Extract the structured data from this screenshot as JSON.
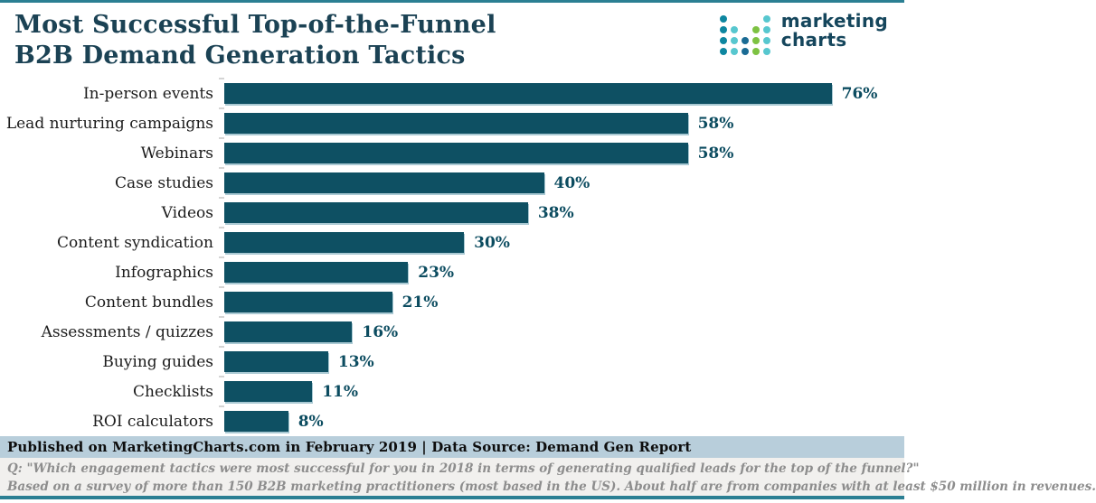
{
  "title": {
    "line1": "Most Successful Top-of-the-Funnel",
    "line2": "B2B Demand Generation Tactics"
  },
  "logo": {
    "name": "marketing-charts-logo",
    "text_line1": "marketing",
    "text_line2": "charts",
    "dot_grid": [
      [
        "#0d86a0",
        null,
        null,
        null,
        "#57c7cf"
      ],
      [
        "#0d86a0",
        "#57c7cf",
        null,
        "#7dc242",
        "#57c7cf"
      ],
      [
        "#0d86a0",
        "#57c7cf",
        "#1a6b94",
        "#7dc242",
        "#57c7cf"
      ],
      [
        "#0d86a0",
        "#57c7cf",
        "#1a6b94",
        "#7dc242",
        "#57c7cf"
      ]
    ]
  },
  "chart_data": {
    "type": "bar",
    "orientation": "horizontal",
    "title": "Most Successful Top-of-the-Funnel B2B Demand Generation Tactics",
    "categories": [
      "In-person events",
      "Lead nurturing campaigns",
      "Webinars",
      "Case studies",
      "Videos",
      "Content syndication",
      "Infographics",
      "Content bundles",
      "Assessments / quizzes",
      "Buying guides",
      "Checklists",
      "ROI calculators"
    ],
    "values": [
      76,
      58,
      58,
      40,
      38,
      30,
      23,
      21,
      16,
      13,
      11,
      8
    ],
    "value_suffix": "%",
    "xlim": [
      0,
      80
    ],
    "grid": false,
    "legend": "none",
    "bar_color": "#0e5063",
    "value_label_color": "#0c4c60"
  },
  "footer": {
    "published": "Published on MarketingCharts.com in February 2019 | Data Source: Demand Gen Report",
    "note_line1": "Q: \"Which engagement tactics were most successful for you in 2018 in terms of generating qualified leads for the top of the funnel?\"",
    "note_line2": "Based on a survey of more than 150 B2B marketing practitioners (most based in the US). About half are from companies with at least $50 million in revenues."
  },
  "colors": {
    "accent_border": "#2b7f93",
    "title_text": "#1b4254",
    "published_band_bg": "#b8cedb",
    "notes_bg": "#f1f0ee",
    "notes_text": "#8d8d8d"
  }
}
